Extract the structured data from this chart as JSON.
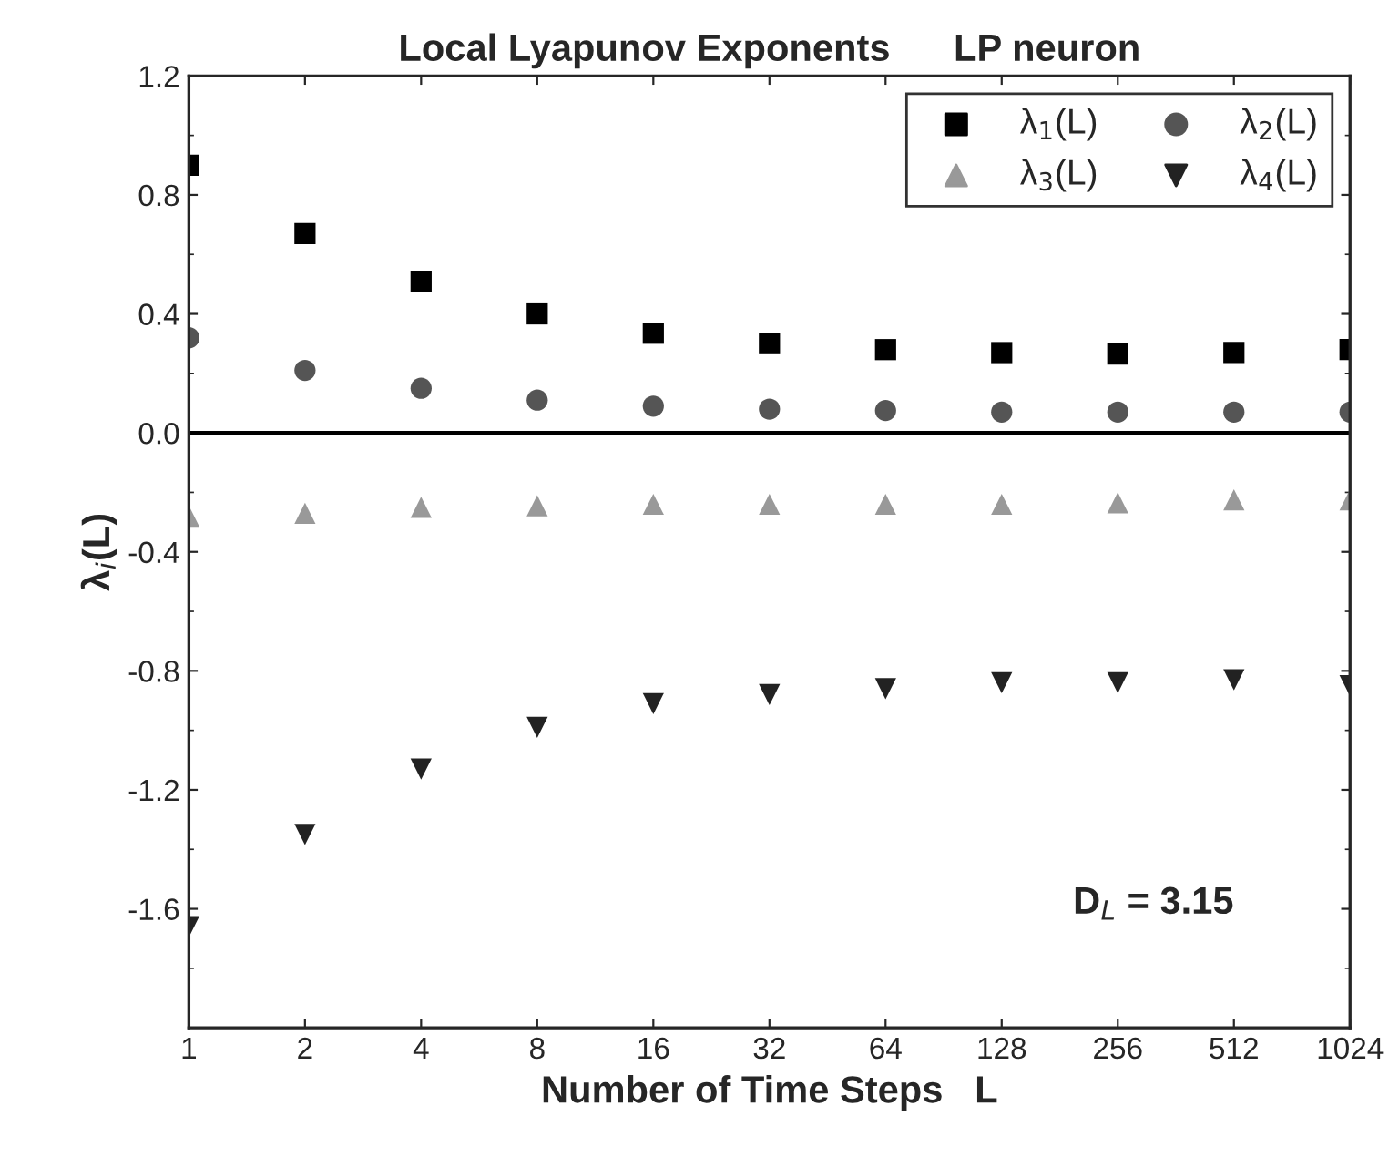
{
  "chart_data": {
    "type": "scatter",
    "title": "Local Lyapunov Exponents      LP neuron",
    "xlabel": "Number of Time Steps   L",
    "ylabel": "λ$_{i}$(L)",
    "x": [
      1,
      2,
      4,
      8,
      16,
      32,
      64,
      128,
      256,
      512,
      1024
    ],
    "series": [
      {
        "name": "λ$_{1}$(L)",
        "color": "#000000",
        "marker": "square",
        "values": [
          0.9,
          0.67,
          0.51,
          0.4,
          0.335,
          0.3,
          0.28,
          0.27,
          0.265,
          0.27,
          0.28
        ]
      },
      {
        "name": "λ$_{2}$(L)",
        "color": "#555555",
        "marker": "circle",
        "values": [
          0.32,
          0.21,
          0.15,
          0.11,
          0.09,
          0.08,
          0.075,
          0.07,
          0.07,
          0.07,
          0.07
        ]
      },
      {
        "name": "λ$_{3}$(L)",
        "color": "#999999",
        "marker": "triangle",
        "values": [
          -0.28,
          -0.27,
          -0.25,
          -0.245,
          -0.24,
          -0.24,
          -0.24,
          -0.24,
          -0.235,
          -0.225,
          -0.225
        ]
      },
      {
        "name": "λ$_{4}$(L)",
        "color": "#222222",
        "marker": "triangle_down",
        "values": [
          -1.66,
          -1.35,
          -1.13,
          -0.99,
          -0.91,
          -0.88,
          -0.86,
          -0.84,
          -0.84,
          -0.83,
          -0.85
        ]
      }
    ],
    "log": "x",
    "xlim": [
      1,
      1024
    ],
    "xticks": [
      1,
      2,
      4,
      8,
      16,
      32,
      64,
      128,
      256,
      512,
      1024
    ],
    "ylim": [
      -2.0,
      1.2
    ],
    "yticks": [
      {
        "value": -1.6,
        "label": "-1.6"
      },
      {
        "value": -1.2,
        "label": "-1.2"
      },
      {
        "value": -0.8,
        "label": "-0.8"
      },
      {
        "value": -0.4,
        "label": "-0.4"
      },
      {
        "value": 0.0,
        "label": "0.0"
      },
      {
        "value": 0.4,
        "label": "0.4"
      },
      {
        "value": 0.8,
        "label": "0.8"
      },
      {
        "value": 1.2,
        "label": "1.2"
      }
    ],
    "ref_lines": [
      {
        "axis": "y",
        "value": 0,
        "color": "#000000",
        "line_style": "solid"
      }
    ],
    "annotations": [
      "D$_{L}$ = 3.15"
    ],
    "legend": "top right",
    "grid": false
  }
}
